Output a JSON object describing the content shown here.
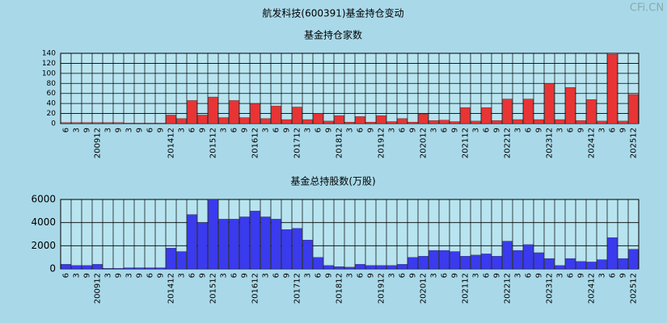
{
  "title": "航发科技(600391)基金持仓变动",
  "watermark": "CFi.CN",
  "chart_data": [
    {
      "type": "bar",
      "title": "基金持仓家数",
      "color": "#e83434",
      "categories": [
        "6",
        "3",
        "9",
        "200912",
        "3",
        "9",
        "3",
        "9",
        "6",
        "9",
        "201412",
        "3",
        "6",
        "9",
        "201512",
        "3",
        "6",
        "9",
        "201612",
        "3",
        "6",
        "9",
        "201712",
        "3",
        "6",
        "9",
        "201812",
        "3",
        "6",
        "9",
        "201912",
        "3",
        "6",
        "9",
        "202012",
        "3",
        "6",
        "9",
        "202112",
        "3",
        "6",
        "9",
        "202212",
        "3",
        "6",
        "9",
        "202312",
        "3",
        "6",
        "9",
        "202412",
        "3",
        "6",
        "9",
        "202512"
      ],
      "values": [
        2,
        2,
        2,
        2,
        2,
        2,
        1,
        1,
        1,
        1,
        17,
        10,
        46,
        17,
        53,
        12,
        46,
        12,
        40,
        10,
        35,
        8,
        33,
        8,
        20,
        5,
        16,
        3,
        14,
        3,
        16,
        4,
        10,
        3,
        19,
        6,
        7,
        4,
        32,
        5,
        32,
        6,
        49,
        8,
        49,
        8,
        80,
        8,
        72,
        6,
        48,
        5,
        138,
        5,
        58
      ],
      "ylim": [
        0,
        140
      ],
      "yticks": [
        0,
        20,
        40,
        60,
        80,
        100,
        120,
        140
      ],
      "grid": true
    },
    {
      "type": "bar",
      "title": "基金总持股数(万股)",
      "color": "#3a3aee",
      "categories": [
        "6",
        "3",
        "9",
        "200912",
        "3",
        "9",
        "3",
        "9",
        "6",
        "9",
        "201412",
        "3",
        "6",
        "9",
        "201512",
        "3",
        "6",
        "9",
        "201612",
        "3",
        "6",
        "9",
        "201712",
        "3",
        "6",
        "9",
        "201812",
        "3",
        "6",
        "9",
        "201912",
        "3",
        "6",
        "9",
        "202012",
        "3",
        "6",
        "9",
        "202112",
        "3",
        "6",
        "9",
        "202212",
        "3",
        "6",
        "9",
        "202312",
        "3",
        "6",
        "9",
        "202412",
        "3",
        "6",
        "9",
        "202512"
      ],
      "values": [
        400,
        300,
        300,
        400,
        50,
        50,
        100,
        100,
        100,
        100,
        1800,
        1500,
        4700,
        4000,
        6000,
        4300,
        4300,
        4500,
        5000,
        4500,
        4300,
        3400,
        3500,
        2500,
        1000,
        300,
        200,
        150,
        400,
        300,
        300,
        300,
        400,
        1000,
        1100,
        1600,
        1600,
        1500,
        1100,
        1200,
        1300,
        1100,
        2400,
        1600,
        2100,
        1400,
        900,
        300,
        900,
        650,
        600,
        800,
        2700,
        900,
        1700
      ],
      "ylim": [
        0,
        6000
      ],
      "yticks": [
        0,
        2000,
        4000,
        6000
      ],
      "grid": true
    }
  ]
}
